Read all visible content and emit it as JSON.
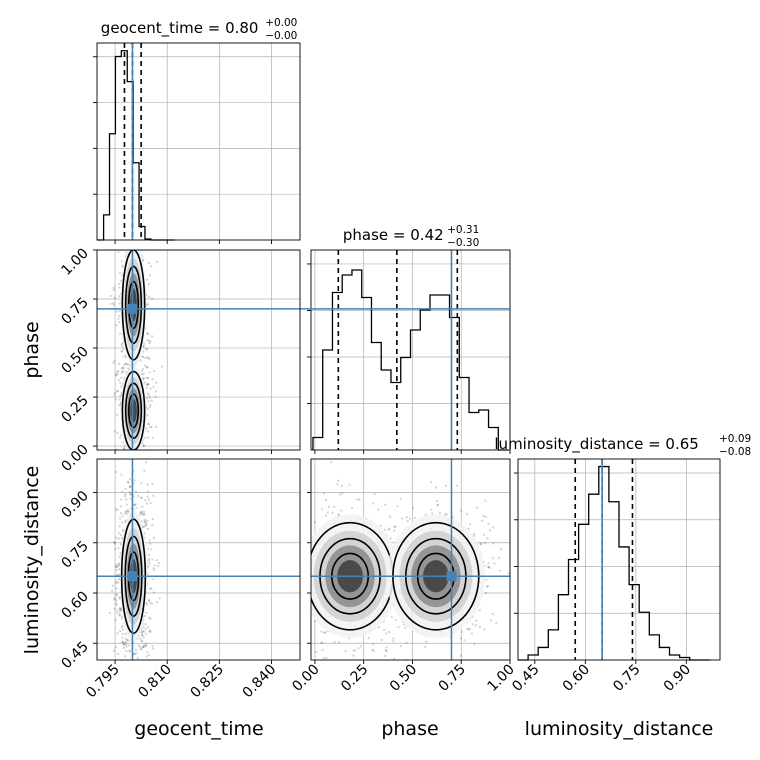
{
  "chart_data": {
    "type": "corner",
    "parameters": [
      "geocent_time",
      "phase",
      "luminosity_distance"
    ],
    "colors": {
      "truth": "#4682b4",
      "hist": "#000000",
      "grid": "#b0b0b0"
    },
    "truths": {
      "geocent_time": 0.8,
      "phase": 0.7,
      "luminosity_distance": 0.65
    },
    "axes": {
      "geocent_time": {
        "lim": [
          0.7898,
          0.8482
        ],
        "ticks": [
          "0.795",
          "0.810",
          "0.825",
          "0.840"
        ]
      },
      "phase": {
        "lim": [
          -0.02,
          1.0
        ],
        "ticks": [
          "0.00",
          "0.25",
          "0.50",
          "0.75",
          "1.00"
        ]
      },
      "luminosity_distance": {
        "lim": [
          0.4,
          1.0
        ],
        "ticks": [
          "0.45",
          "0.60",
          "0.75",
          "0.90"
        ]
      }
    },
    "titles": [
      {
        "param": "geocent_time",
        "label": "geocent_time = 0.80",
        "plus": "+0.00",
        "minus": "−0.00"
      },
      {
        "param": "phase",
        "label": "phase = 0.42",
        "plus": "+0.31",
        "minus": "−0.30"
      },
      {
        "param": "luminosity_distance",
        "label": "luminosity_distance = 0.65",
        "plus": "+0.09",
        "minus": "−0.08"
      }
    ],
    "histograms": {
      "geocent_time": {
        "edges": [
          0.79,
          0.7917,
          0.7934,
          0.7951,
          0.7968,
          0.7985,
          0.8002,
          0.8019,
          0.8036,
          0.8053,
          0.807,
          0.8087,
          0.8104,
          0.8121
        ],
        "counts": [
          0.0,
          0.13,
          0.55,
          0.95,
          0.98,
          0.82,
          0.4,
          0.07,
          0.005,
          0.0,
          0.0,
          0.0,
          0.0
        ],
        "quantiles": [
          0.7977,
          0.8,
          0.8025
        ],
        "ylim": [
          0,
          1.02
        ]
      },
      "phase": {
        "edges": [
          -0.01,
          0.04,
          0.09,
          0.14,
          0.19,
          0.24,
          0.29,
          0.34,
          0.39,
          0.44,
          0.49,
          0.54,
          0.59,
          0.64,
          0.69,
          0.74,
          0.79,
          0.84,
          0.89,
          0.94,
          0.99
        ],
        "counts": [
          0.05,
          0.4,
          0.63,
          0.7,
          0.72,
          0.61,
          0.43,
          0.32,
          0.27,
          0.37,
          0.48,
          0.56,
          0.62,
          0.62,
          0.53,
          0.29,
          0.15,
          0.16,
          0.09,
          0.0
        ],
        "quantiles": [
          0.12,
          0.42,
          0.73
        ],
        "ylim": [
          0,
          0.8
        ]
      },
      "luminosity_distance": {
        "edges": [
          0.4,
          0.43,
          0.46,
          0.49,
          0.52,
          0.55,
          0.58,
          0.61,
          0.64,
          0.67,
          0.7,
          0.73,
          0.76,
          0.79,
          0.82,
          0.85,
          0.88,
          0.91,
          0.94,
          0.97
        ],
        "counts": [
          0.0,
          0.02,
          0.05,
          0.12,
          0.26,
          0.4,
          0.54,
          0.66,
          0.77,
          0.63,
          0.45,
          0.3,
          0.19,
          0.1,
          0.05,
          0.02,
          0.01,
          0.0,
          0.0
        ],
        "quantiles": [
          0.57,
          0.65,
          0.74
        ],
        "ylim": [
          0,
          0.8
        ]
      }
    },
    "grid": true
  }
}
